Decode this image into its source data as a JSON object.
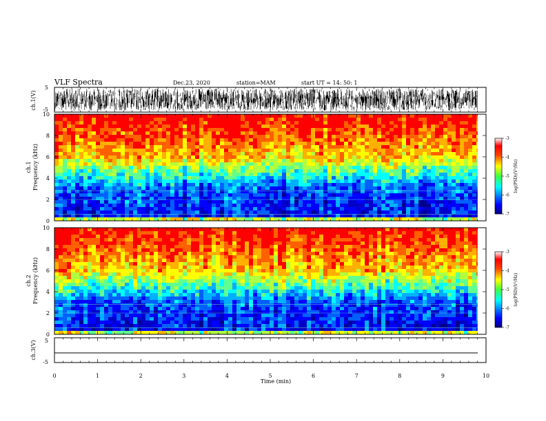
{
  "header": {
    "title": "VLF Spectra",
    "date": "Dec.23, 2020",
    "station": "station=MAM",
    "start_ut": "start  UT =   14: 50: 1"
  },
  "chart_data": [
    {
      "type": "line",
      "panel": "ch1-waveform",
      "ylabel": "ch.1(V)",
      "ylim": [
        -5,
        5
      ],
      "yticks": [
        "5",
        "-5"
      ],
      "description_values": "dense noise waveform, amplitude roughly -5 to +5 V"
    },
    {
      "type": "heatmap",
      "panel": "ch1-spectrogram",
      "ylabel_line1": "ch.1",
      "ylabel_line2": "Frequency (kHz)",
      "ylim": [
        0,
        10
      ],
      "yticks": [
        "0",
        "2",
        "4",
        "6",
        "8",
        "10"
      ],
      "colorbar": {
        "label": "log(PSD)(V²/Hz)",
        "ticks": [
          "-3",
          "-4",
          "-5",
          "-6",
          "-7"
        ],
        "range": [
          -7,
          -3
        ]
      }
    },
    {
      "type": "heatmap",
      "panel": "ch2-spectrogram",
      "ylabel_line1": "ch.2",
      "ylabel_line2": "Frequency (kHz)",
      "ylim": [
        0,
        10
      ],
      "yticks": [
        "0",
        "2",
        "4",
        "6",
        "8",
        "10"
      ],
      "colorbar": {
        "label": "log(PSD)(V²/Hz)",
        "ticks": [
          "-3",
          "-4",
          "-5",
          "-6",
          "-7"
        ],
        "range": [
          -7,
          -3
        ]
      }
    },
    {
      "type": "line",
      "panel": "ch3-waveform",
      "ylabel": "ch.3(V)",
      "ylim": [
        -5,
        5
      ],
      "yticks": [
        "5",
        "-5"
      ],
      "description_values": "flat line near -2 V"
    }
  ],
  "xaxis": {
    "label": "Time (min)",
    "ticks": [
      "0",
      "1",
      "2",
      "3",
      "4",
      "5",
      "6",
      "7",
      "8",
      "9",
      "10"
    ],
    "range": [
      0,
      10
    ]
  },
  "colors": {
    "jet": [
      "#00008f",
      "#0000ff",
      "#0080ff",
      "#00ffff",
      "#80ff80",
      "#ffff00",
      "#ff8000",
      "#ff0000",
      "#800000"
    ]
  }
}
